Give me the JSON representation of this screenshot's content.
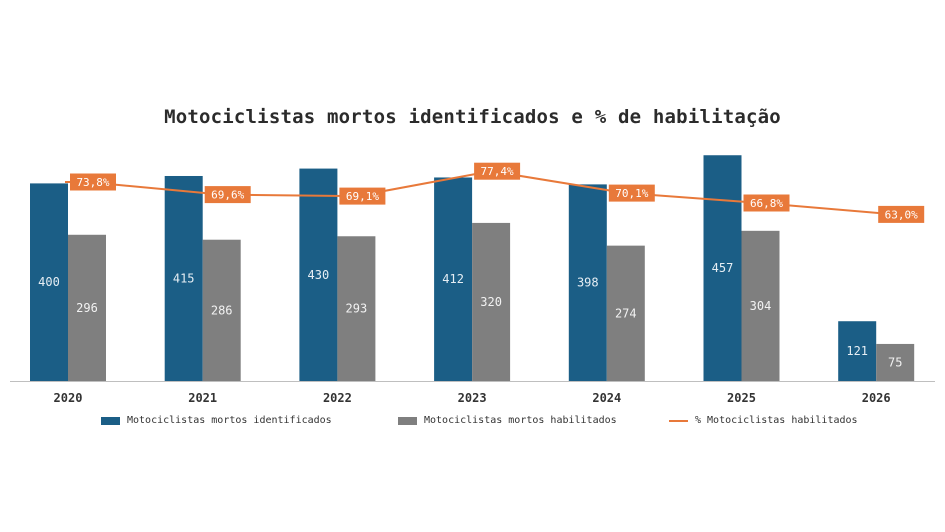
{
  "chart_data": {
    "type": "bar",
    "title": "Motociclistas mortos identificados e % de habilitação",
    "categories": [
      "2020",
      "2021",
      "2022",
      "2023",
      "2024",
      "2025",
      "2026"
    ],
    "series": [
      {
        "name": "Motociclistas mortos identificados",
        "type": "bar",
        "values": [
          400,
          415,
          430,
          412,
          398,
          457,
          121
        ],
        "labels": [
          "400",
          "415",
          "430",
          "412",
          "398",
          "457",
          "121"
        ]
      },
      {
        "name": "Motociclistas mortos habilitados",
        "type": "bar",
        "values": [
          296,
          286,
          293,
          320,
          274,
          304,
          75
        ],
        "labels": [
          "296",
          "286",
          "293",
          "320",
          "274",
          "304",
          "75"
        ]
      },
      {
        "name": "% Motociclistas habilitados",
        "type": "line",
        "values": [
          73.8,
          69.6,
          69.1,
          77.4,
          70.1,
          66.8,
          63.0
        ],
        "labels": [
          "73,8%",
          "69,6%",
          "69,1%",
          "77,4%",
          "70,1%",
          "66,8%",
          "63,0%"
        ]
      }
    ],
    "colors": {
      "identificados": "#1b5e86",
      "habilitados": "#7f7f7f",
      "percent_line": "#e8793a",
      "percent_label_bg": "#e8793a",
      "axis": "#bfbfbf"
    },
    "grid": false,
    "legend_position": "bottom"
  }
}
